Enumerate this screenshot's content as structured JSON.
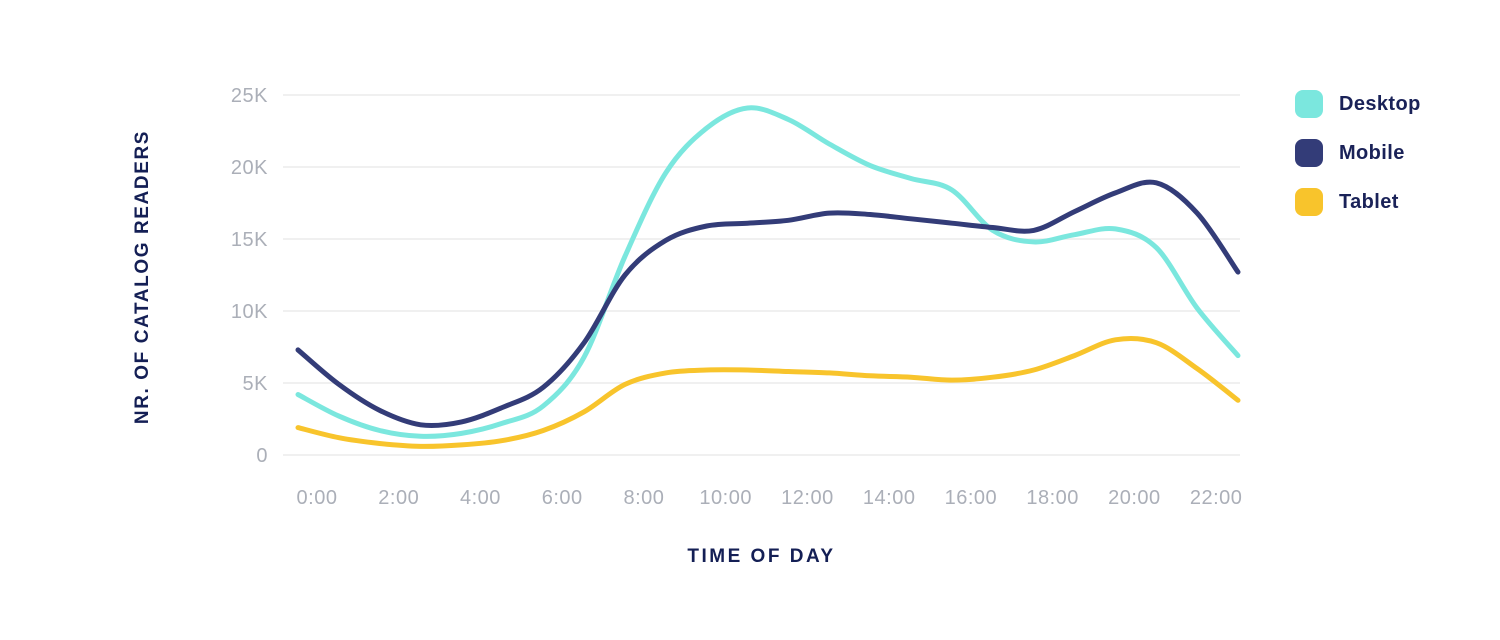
{
  "chart_data": {
    "type": "line",
    "title": "",
    "xlabel": "TIME OF DAY",
    "ylabel": "NR. OF CATALOG READERS",
    "legend_position": "top-right",
    "grid": "horizontal-only",
    "ylim_readers": [
      0,
      25000
    ],
    "y_tick_labels": [
      "0",
      "5K",
      "10K",
      "15K",
      "20K",
      "25K"
    ],
    "y_tick_values_thousands": [
      0,
      5,
      10,
      15,
      20,
      25
    ],
    "x_tick_labels": [
      "0:00",
      "2:00",
      "4:00",
      "6:00",
      "8:00",
      "10:00",
      "12:00",
      "14:00",
      "16:00",
      "18:00",
      "20:00",
      "22:00"
    ],
    "x_tick_hours": [
      0,
      2,
      4,
      6,
      8,
      10,
      12,
      14,
      16,
      18,
      20,
      22
    ],
    "x_hours": [
      0,
      1,
      2,
      3,
      4,
      5,
      6,
      7,
      8,
      9,
      10,
      11,
      12,
      13,
      14,
      15,
      16,
      17,
      18,
      19,
      20,
      21,
      22,
      23
    ],
    "series": [
      {
        "name": "Desktop",
        "color": "#7be7de",
        "values_thousands": [
          4.2,
          2.7,
          1.7,
          1.3,
          1.5,
          2.2,
          3.4,
          6.8,
          13.8,
          19.6,
          22.7,
          24.1,
          23.3,
          21.6,
          20.1,
          19.2,
          18.4,
          15.6,
          14.8,
          15.3,
          15.7,
          14.4,
          10.2,
          6.9
        ]
      },
      {
        "name": "Mobile",
        "color": "#333c78",
        "values_thousands": [
          7.3,
          4.9,
          3.1,
          2.1,
          2.3,
          3.3,
          4.7,
          7.8,
          12.5,
          14.9,
          15.9,
          16.1,
          16.3,
          16.8,
          16.7,
          16.4,
          16.1,
          15.8,
          15.6,
          16.9,
          18.2,
          18.9,
          16.8,
          12.7
        ]
      },
      {
        "name": "Tablet",
        "color": "#f8c42c",
        "values_thousands": [
          1.9,
          1.2,
          0.8,
          0.6,
          0.7,
          1.0,
          1.7,
          3.0,
          4.9,
          5.7,
          5.9,
          5.9,
          5.8,
          5.7,
          5.5,
          5.4,
          5.2,
          5.4,
          5.9,
          6.9,
          8.0,
          7.8,
          6.0,
          3.8
        ]
      }
    ]
  },
  "style_colors": {
    "tick_label_gray": "#abafb8",
    "axis_title_navy": "#141f55",
    "legend_text_navy": "#1a2258",
    "gridline": "#ececec",
    "background": "#ffffff"
  }
}
